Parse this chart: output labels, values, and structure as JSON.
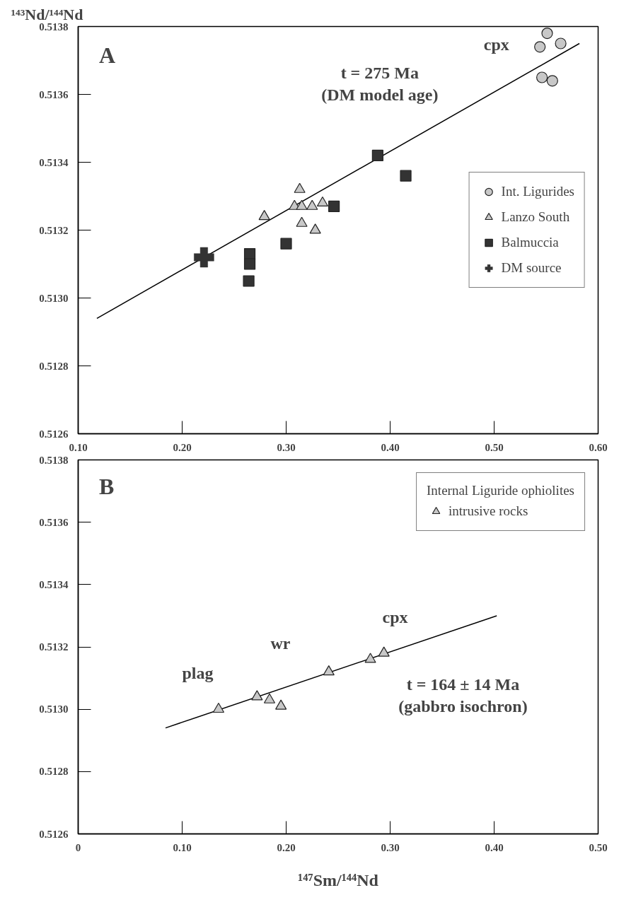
{
  "chart_data": [
    {
      "type": "scatter",
      "ylabel": "¹⁴³Nd/¹⁴⁴Nd",
      "xlim": [
        0.1,
        0.6
      ],
      "ylim": [
        0.5126,
        0.5138
      ],
      "xticks": [
        {
          "value": 0.1,
          "label": "0.10"
        },
        {
          "value": 0.2,
          "label": "0.20"
        },
        {
          "value": 0.3,
          "label": "0.30"
        },
        {
          "value": 0.4,
          "label": "0.40"
        },
        {
          "value": 0.5,
          "label": "0.50"
        },
        {
          "value": 0.6,
          "label": "0.60"
        }
      ],
      "yticks": [
        {
          "value": 0.5126,
          "label": "0.5126"
        },
        {
          "value": 0.5128,
          "label": "0.5128"
        },
        {
          "value": 0.513,
          "label": "0.5130"
        },
        {
          "value": 0.5132,
          "label": "0.5132"
        },
        {
          "value": 0.5134,
          "label": "0.5134"
        },
        {
          "value": 0.5136,
          "label": "0.5136"
        },
        {
          "value": 0.5138,
          "label": "0.5138"
        }
      ],
      "grid": false,
      "legend": "right",
      "series": [
        {
          "type": "line",
          "color": "#000000",
          "x": [
            0.118,
            0.582
          ],
          "values": [
            0.51294,
            0.51375
          ]
        },
        {
          "name": "Int. Ligurides",
          "marker": "circle",
          "color": "#c8c8c8",
          "x": [
            0.551,
            0.544,
            0.564,
            0.546,
            0.556
          ],
          "values": [
            0.51378,
            0.51374,
            0.51375,
            0.51365,
            0.51364
          ]
        },
        {
          "name": "Lanzo South",
          "marker": "triangle",
          "color": "#c8c8c8",
          "x": [
            0.279,
            0.313,
            0.308,
            0.315,
            0.325,
            0.335,
            0.315,
            0.328
          ],
          "values": [
            0.51324,
            0.51332,
            0.51327,
            0.51327,
            0.51327,
            0.51328,
            0.51322,
            0.5132
          ]
        },
        {
          "name": "Balmuccia",
          "marker": "square",
          "color": "#333333",
          "x": [
            0.388,
            0.415,
            0.346,
            0.3,
            0.265,
            0.265,
            0.264
          ],
          "values": [
            0.51342,
            0.51336,
            0.51327,
            0.51316,
            0.51313,
            0.5131,
            0.51305
          ]
        },
        {
          "name": "DM source",
          "marker": "cross",
          "color": "#333333",
          "x": [
            0.221
          ],
          "values": [
            0.51312
          ]
        }
      ],
      "annotations": [
        "A",
        "cpx",
        "t = 275 Ma\n(DM model age)"
      ]
    },
    {
      "type": "scatter",
      "xlabel": "¹⁴⁷Sm/¹⁴⁴Nd",
      "xlim": [
        0,
        0.5
      ],
      "ylim": [
        0.5126,
        0.5138
      ],
      "xticks": [
        {
          "value": 0,
          "label": "0"
        },
        {
          "value": 0.1,
          "label": "0.10"
        },
        {
          "value": 0.2,
          "label": "0.20"
        },
        {
          "value": 0.3,
          "label": "0.30"
        },
        {
          "value": 0.4,
          "label": "0.40"
        },
        {
          "value": 0.5,
          "label": "0.50"
        }
      ],
      "yticks": [
        {
          "value": 0.5126,
          "label": "0.5126"
        },
        {
          "value": 0.5128,
          "label": "0.5128"
        },
        {
          "value": 0.513,
          "label": "0.5130"
        },
        {
          "value": 0.5132,
          "label": "0.5132"
        },
        {
          "value": 0.5134,
          "label": "0.5134"
        },
        {
          "value": 0.5136,
          "label": "0.5136"
        },
        {
          "value": 0.5138,
          "label": "0.5138"
        }
      ],
      "grid": false,
      "legend": "top right",
      "legend_title": "Internal Liguride ophiolites",
      "series": [
        {
          "type": "line",
          "color": "#000000",
          "x": [
            0.084,
            0.4025
          ],
          "values": [
            0.51294,
            0.5133
          ]
        },
        {
          "name": "intrusive rocks",
          "marker": "triangle",
          "color": "#c8c8c8",
          "x": [
            0.135,
            0.172,
            0.184,
            0.195,
            0.241,
            0.281,
            0.294
          ],
          "values": [
            0.513,
            0.51304,
            0.51303,
            0.51301,
            0.51312,
            0.51316,
            0.51318
          ]
        }
      ],
      "annotations": [
        "B",
        "plag",
        "wr",
        "cpx",
        "t = 164 ± 14 Ma\n(gabbro isochron)"
      ]
    }
  ]
}
